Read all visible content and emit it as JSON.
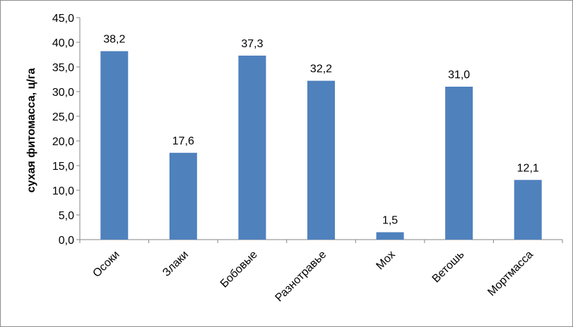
{
  "chart_data": {
    "type": "bar",
    "title": "",
    "xlabel": "",
    "ylabel": "сухая фитомасса, ц/га",
    "ylim": [
      0,
      45
    ],
    "ytick_step": 5,
    "ytick_labels": [
      "0,0",
      "5,0",
      "10,0",
      "15,0",
      "20,0",
      "25,0",
      "30,0",
      "35,0",
      "40,0",
      "45,0"
    ],
    "categories": [
      "Осоки",
      "Злаки",
      "Бобовые",
      "Разнотравье",
      "Мох",
      "Ветошь",
      "Мортмасса"
    ],
    "values": [
      38.2,
      17.6,
      37.3,
      32.2,
      1.5,
      31.0,
      12.1
    ],
    "data_labels": [
      "38,2",
      "17,6",
      "37,3",
      "32,2",
      "1,5",
      "31,0",
      "12,1"
    ],
    "bar_color": "#4f81bd",
    "grid": false,
    "legend": "none"
  }
}
